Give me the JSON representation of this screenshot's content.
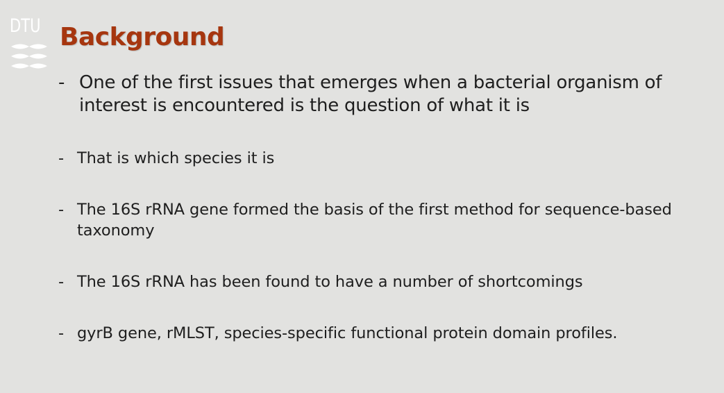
{
  "logo": {
    "text": "DTU",
    "icon": "dtu-wave-logo-icon",
    "color": "#ffffff"
  },
  "slide": {
    "title": "Background",
    "title_color": "#a6360f",
    "background_color": "#e2e2e0",
    "bullet_marker": "-",
    "bullets": [
      "One of the first issues that emerges when a bacterial organism of interest is encountered is the question of what it is",
      "That is which species it is",
      "The 16S rRNA gene formed the basis of the first method for sequence-based taxonomy",
      "The 16S rRNA has been found to have a number of shortcomings",
      "gyrB gene, rMLST, species-specific functional protein domain profiles."
    ]
  }
}
